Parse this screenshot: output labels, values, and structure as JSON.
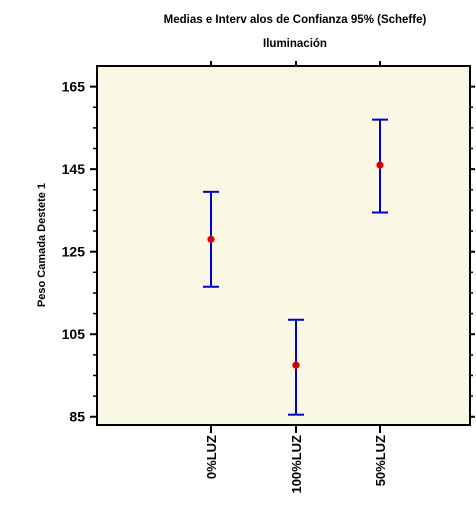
{
  "chart_data": {
    "type": "interval",
    "title": "Medias e Interv alos de Confianza 95% (Scheffe)",
    "subtitle": "Iluminación",
    "xlabel": "",
    "ylabel": "Peso Camada Destete 1",
    "ylim": [
      83,
      170
    ],
    "yticks": [
      85,
      105,
      125,
      145,
      165
    ],
    "categories": [
      "0%LUZ",
      "100%LUZ",
      "50%LUZ"
    ],
    "means": [
      128,
      97.5,
      146
    ],
    "lower": [
      116.5,
      85.5,
      134.5
    ],
    "upper": [
      139.5,
      108.5,
      157
    ],
    "grid": false,
    "colors": {
      "plot_background": "#f8f8e4",
      "interval": "#0000cc",
      "mean_marker": "#cc0000",
      "axis": "#000000"
    }
  }
}
